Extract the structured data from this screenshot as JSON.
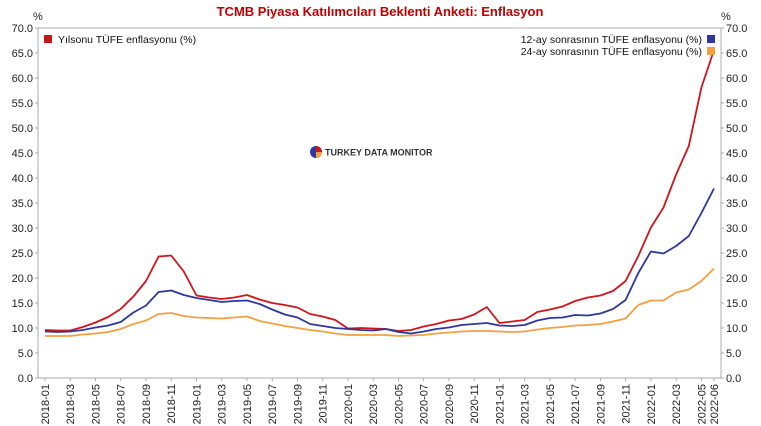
{
  "chart_data": {
    "type": "line",
    "title": "TCMB Piyasa Katılımcıları Beklenti Anketi: Enflasyon",
    "y_unit_left": "%",
    "y_unit_right": "%",
    "ylim": [
      0,
      70
    ],
    "ytick_step": 5,
    "ytick_labels": [
      "0.0",
      "5.0",
      "10.0",
      "15.0",
      "20.0",
      "25.0",
      "30.0",
      "35.0",
      "40.0",
      "45.0",
      "50.0",
      "55.0",
      "60.0",
      "65.0",
      "70.0"
    ],
    "x": [
      "2018-01",
      "2018-02",
      "2018-03",
      "2018-04",
      "2018-05",
      "2018-06",
      "2018-07",
      "2018-08",
      "2018-09",
      "2018-10",
      "2018-11",
      "2018-12",
      "2019-01",
      "2019-02",
      "2019-03",
      "2019-04",
      "2019-05",
      "2019-06",
      "2019-07",
      "2019-08",
      "2019-09",
      "2019-10",
      "2019-11",
      "2019-12",
      "2020-01",
      "2020-02",
      "2020-03",
      "2020-04",
      "2020-05",
      "2020-06",
      "2020-07",
      "2020-08",
      "2020-09",
      "2020-10",
      "2020-11",
      "2020-12",
      "2021-01",
      "2021-02",
      "2021-03",
      "2021-04",
      "2021-05",
      "2021-06",
      "2021-07",
      "2021-08",
      "2021-09",
      "2021-10",
      "2021-11",
      "2021-12",
      "2022-01",
      "2022-02",
      "2022-03",
      "2022-04",
      "2022-05",
      "2022-06"
    ],
    "xtick_labels": [
      "2018-01",
      "2018-03",
      "2018-05",
      "2018-07",
      "2018-09",
      "2018-11",
      "2019-01",
      "2019-03",
      "2019-05",
      "2019-07",
      "2019-09",
      "2019-11",
      "2020-01",
      "2020-03",
      "2020-05",
      "2020-07",
      "2020-09",
      "2020-11",
      "2021-01",
      "2021-03",
      "2021-05",
      "2021-07",
      "2021-09",
      "2021-11",
      "2022-01",
      "2022-03",
      "2022-05",
      "2022-06"
    ],
    "grid": false,
    "series": [
      {
        "name": "Yılsonu TÜFE enflasyonu (%)",
        "color": "#d0141c",
        "legend": "top-left",
        "values": [
          9.6,
          9.5,
          9.5,
          10.2,
          11.1,
          12.2,
          13.8,
          16.3,
          19.4,
          24.3,
          24.5,
          21.3,
          16.5,
          16.1,
          15.8,
          16.1,
          16.6,
          15.7,
          15.0,
          14.6,
          14.1,
          12.8,
          12.3,
          11.6,
          9.9,
          10.0,
          9.9,
          9.8,
          9.4,
          9.6,
          10.3,
          10.8,
          11.5,
          11.8,
          12.7,
          14.2,
          11.0,
          11.3,
          11.6,
          13.2,
          13.7,
          14.3,
          15.4,
          16.1,
          16.5,
          17.4,
          19.4,
          24.4,
          30.1,
          34.1,
          40.7,
          46.4,
          58.1,
          65.6
        ]
      },
      {
        "name": "12-ay sonrasının TÜFE enflasyonu (%)",
        "color": "#2e36a0",
        "legend": "top-right",
        "values": [
          9.3,
          9.2,
          9.3,
          9.6,
          10.1,
          10.5,
          11.2,
          13.1,
          14.5,
          17.2,
          17.5,
          16.6,
          16.0,
          15.6,
          15.2,
          15.4,
          15.5,
          14.8,
          13.7,
          12.7,
          12.1,
          10.8,
          10.4,
          10.0,
          9.8,
          9.6,
          9.5,
          9.8,
          9.2,
          8.9,
          9.3,
          9.8,
          10.1,
          10.6,
          10.8,
          11.0,
          10.5,
          10.4,
          10.6,
          11.5,
          12.0,
          12.1,
          12.6,
          12.5,
          12.9,
          13.8,
          15.6,
          21.0,
          25.3,
          24.9,
          26.4,
          28.4,
          33.0,
          37.9
        ]
      },
      {
        "name": "24-ay sonrasının TÜFE enflasyonu (%)",
        "color": "#f4a040",
        "legend": "top-right",
        "values": [
          8.4,
          8.4,
          8.4,
          8.7,
          8.9,
          9.2,
          9.8,
          10.8,
          11.5,
          12.8,
          13.0,
          12.4,
          12.1,
          12.0,
          11.9,
          12.1,
          12.3,
          11.4,
          10.9,
          10.4,
          10.0,
          9.6,
          9.3,
          8.9,
          8.6,
          8.6,
          8.6,
          8.6,
          8.4,
          8.5,
          8.6,
          8.9,
          9.1,
          9.3,
          9.4,
          9.4,
          9.3,
          9.2,
          9.3,
          9.7,
          10.0,
          10.2,
          10.5,
          10.6,
          10.8,
          11.3,
          11.9,
          14.6,
          15.5,
          15.5,
          17.1,
          17.7,
          19.4,
          21.9
        ]
      }
    ]
  },
  "watermark": "TURKEY DATA MONITOR"
}
